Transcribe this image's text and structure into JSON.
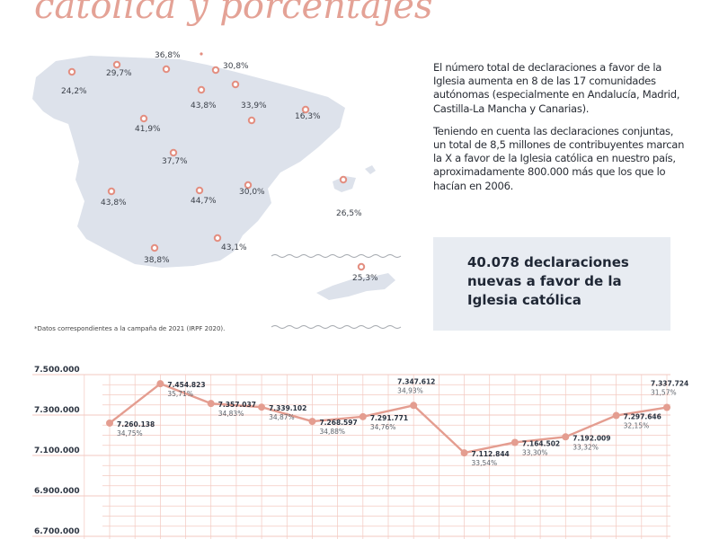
{
  "page": {
    "title": "católica y porcentajes",
    "paragraph_1": "El número total de declaraciones a favor de la Iglesia aumenta en 8 de las 17 comunidades autónomas (especialmente en Andalucía, Madrid, Castilla-La Mancha y Canarias).",
    "paragraph_2": "Teniendo en cuenta las declaraciones conjuntas, un total de 8,5 millones de contribuyentes marcan la X a favor de la Iglesia católica en nuestro país, aproximadamente 800.000 más que los que lo hacían en 2006.",
    "highlight": "40.078 declaraciones nuevas a favor de la Iglesia católica",
    "footnote": "*Datos correspondientes a la campaña de 2021 (IRPF 2020)."
  },
  "map": {
    "regions": [
      {
        "label": "24,2%"
      },
      {
        "label": "29,7%"
      },
      {
        "label": "36,8%"
      },
      {
        "label": "30,8%"
      },
      {
        "label": "43,8%"
      },
      {
        "label": "33,9%"
      },
      {
        "label": "16,3%"
      },
      {
        "label": "41,9%"
      },
      {
        "label": "37,7%"
      },
      {
        "label": "30,0%"
      },
      {
        "label": "43,8%"
      },
      {
        "label": "44,7%"
      },
      {
        "label": "26,5%"
      },
      {
        "label": "38,8%"
      },
      {
        "label": "43,1%"
      },
      {
        "label": "25,3%"
      }
    ],
    "colors": {
      "land": "#dde2eb",
      "marker": "#e38e80",
      "wave": "#a3a7ad"
    }
  },
  "chart_data": {
    "type": "line",
    "title": "",
    "xlabel": "",
    "ylabel": "",
    "ylim": [
      6700000,
      7500000
    ],
    "yticks": [
      7500000,
      7300000,
      7100000,
      6900000,
      6700000
    ],
    "ytick_labels": [
      "7.500.000",
      "7.300.000",
      "7.100.000",
      "6.900.000",
      "6.700.000"
    ],
    "grid": true,
    "line_color": "#e49d90",
    "grid_color": "#f3c9c1",
    "series": [
      {
        "values": [
          7260138,
          7454823,
          7357037,
          7339102,
          7268597,
          7291771,
          7347612,
          7112844,
          7164502,
          7192009,
          7297646,
          7337724
        ],
        "value_labels": [
          "7.260.138",
          "7.454.823",
          "7.357.037",
          "7.339.102",
          "7.268.597",
          "7.291.771",
          "7.347.612",
          "7.112.844",
          "7.164.502",
          "7.192.009",
          "7.297.646",
          "7.337.724"
        ],
        "percent_labels": [
          "34,75%",
          "35,71%",
          "34,83%",
          "34,87%",
          "34,88%",
          "34,76%",
          "34,93%",
          "33,54%",
          "33,30%",
          "33,32%",
          "32,15%",
          "31,57%"
        ]
      }
    ]
  }
}
